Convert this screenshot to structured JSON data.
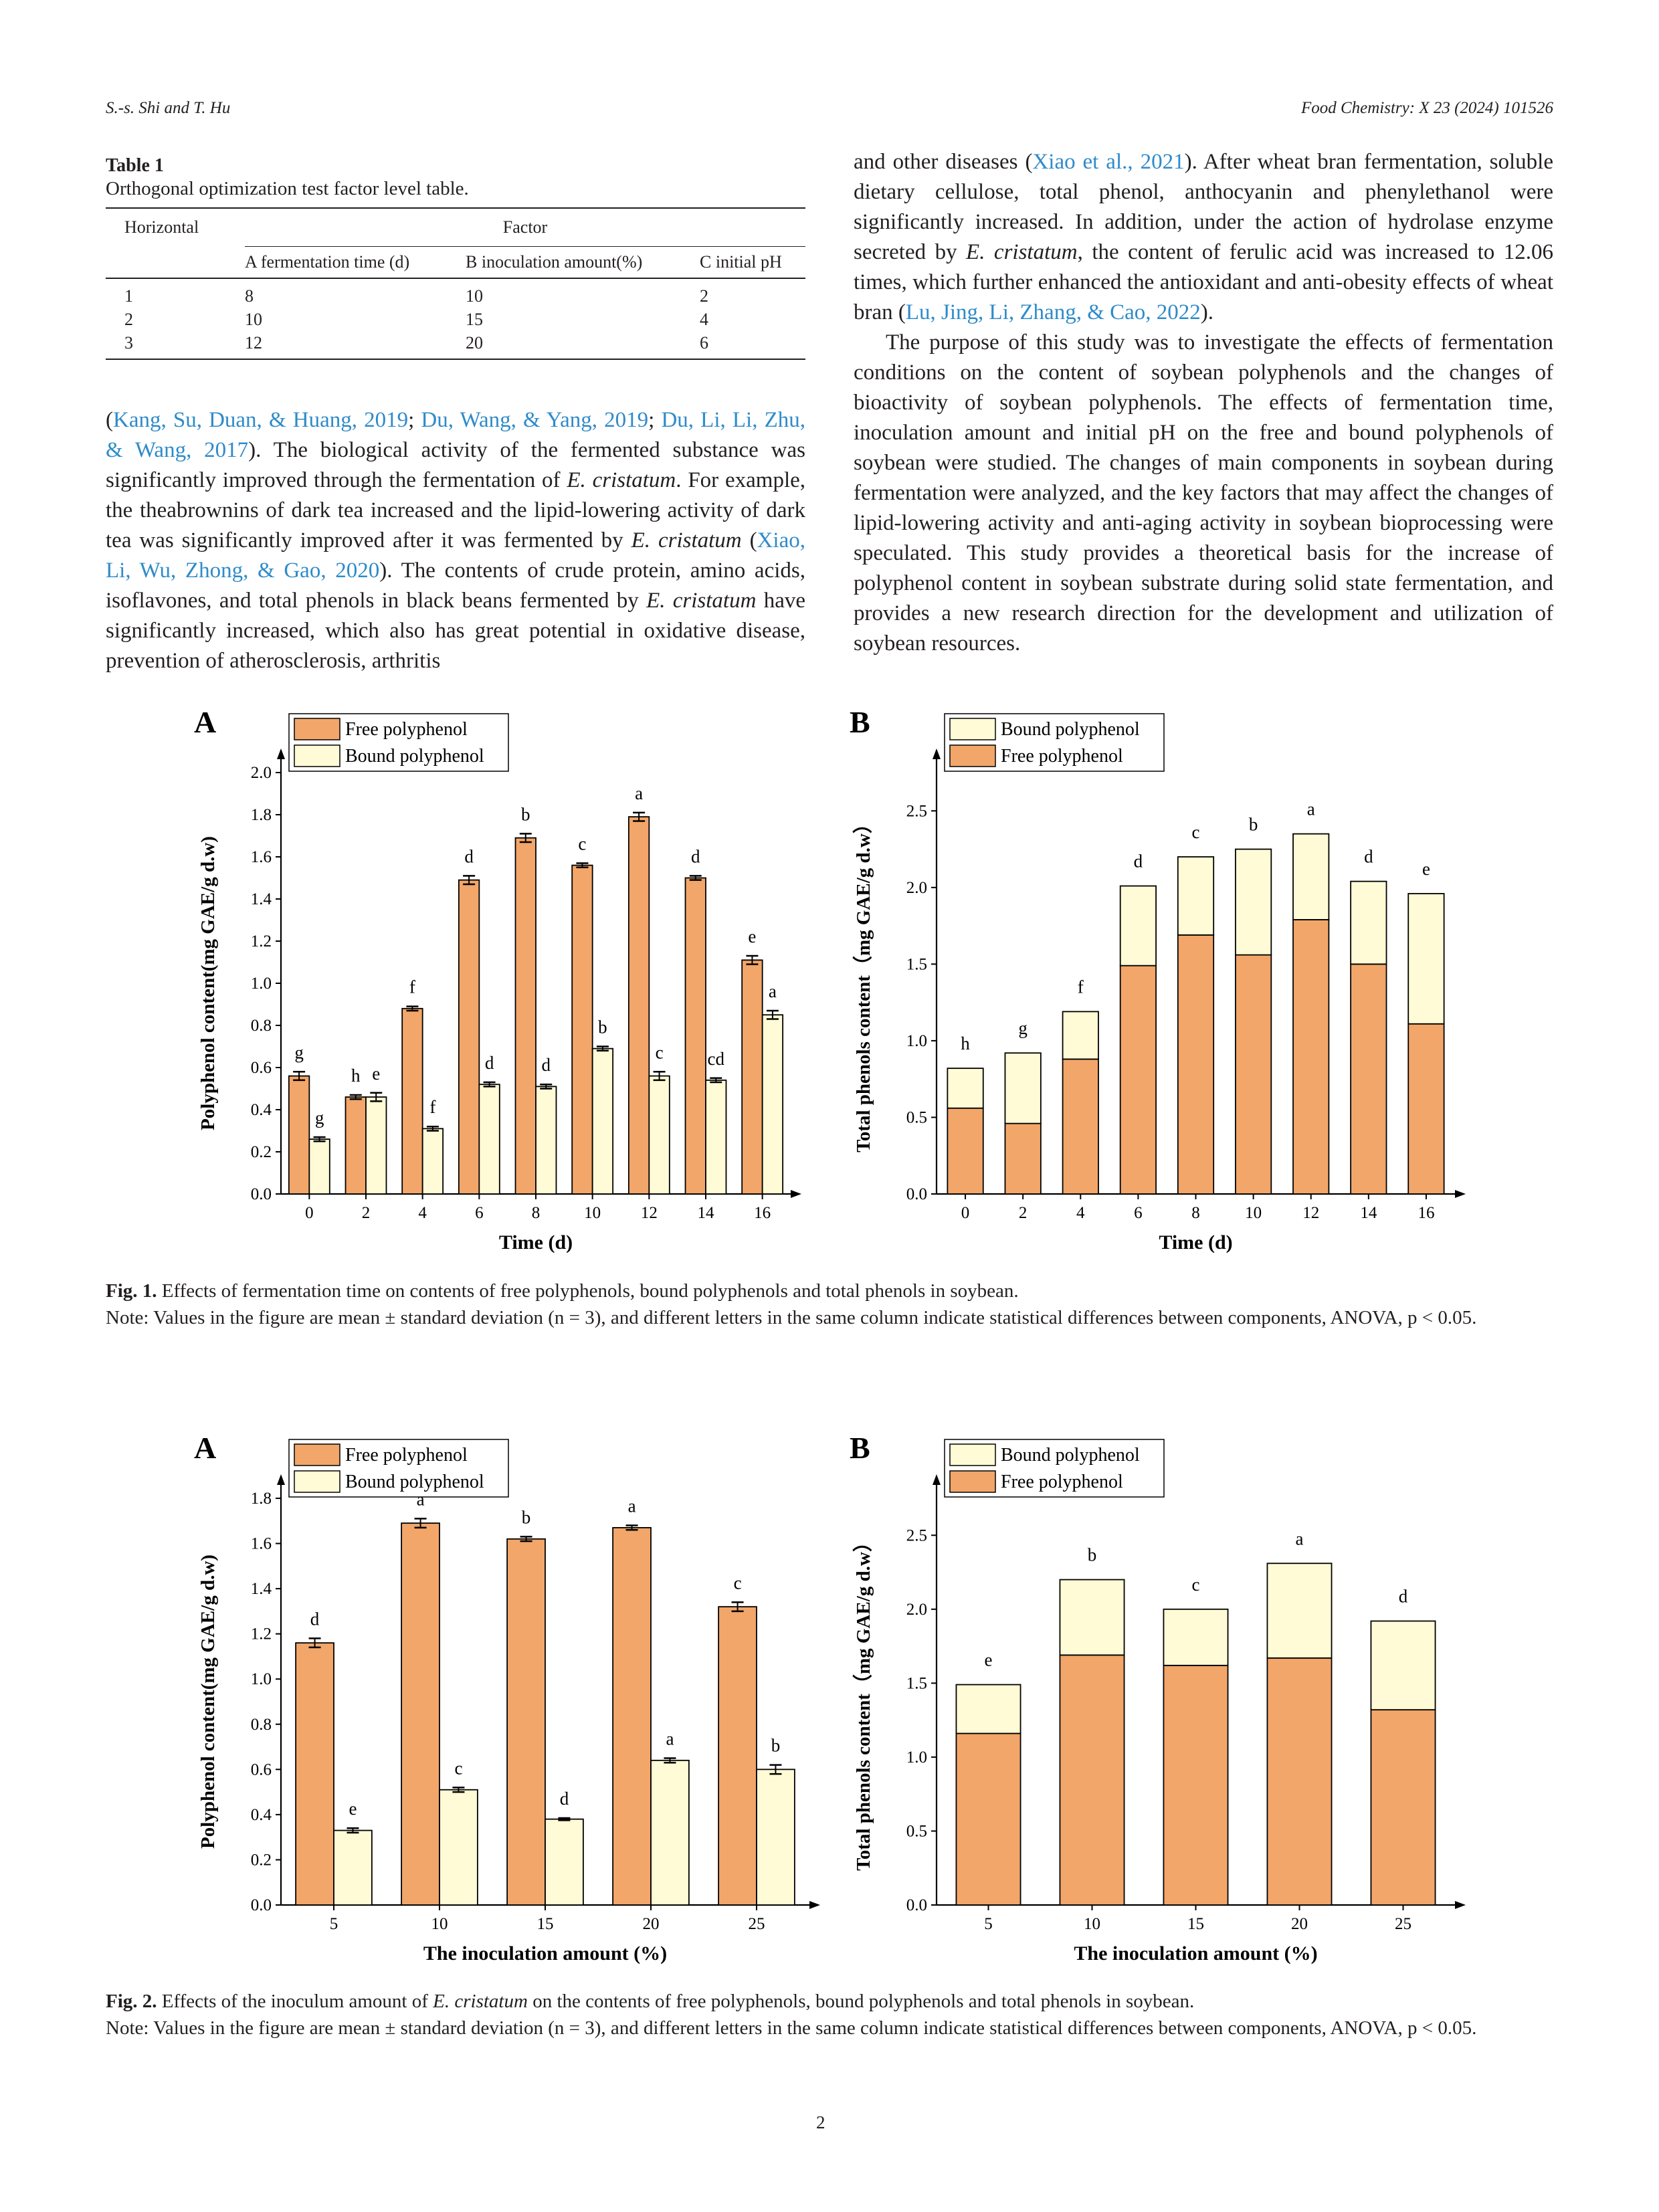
{
  "header": {
    "left": "S.-s. Shi and T. Hu",
    "right": "Food Chemistry: X 23 (2024) 101526"
  },
  "table1": {
    "title": "Table 1",
    "subtitle": "Orthogonal optimization test factor level table.",
    "col_horizontal": "Horizontal",
    "col_factor": "Factor",
    "factors": [
      "A fermentation time (d)",
      "B inoculation amount(%)",
      "C initial pH"
    ],
    "rows": [
      [
        "1",
        "8",
        "10",
        "2"
      ],
      [
        "2",
        "10",
        "15",
        "4"
      ],
      [
        "3",
        "12",
        "20",
        "6"
      ]
    ]
  },
  "left_text": {
    "refs": [
      "Kang, Su, Duan, & Huang, 2019",
      "; ",
      "Du, Wang, & Yang, 2019",
      "; ",
      "Du, Li, Li, Zhu, & Wang, 2017"
    ],
    "s1": "). The biological activity of the fermented substance was significantly improved through the fermentation of ",
    "sp1": "E. cristatum",
    "s2": ". For example, the theabrownins of dark tea increased and the lipid-lowering activity of dark tea was significantly improved after it was fermented by ",
    "sp2": "E. cristatum",
    "s3": " (",
    "ref4": "Xiao, Li, Wu, Zhong, & Gao, 2020",
    "s4": "). The contents of crude protein, amino acids, isoflavones, and total phenols in black beans fermented by ",
    "sp3": "E. cristatum",
    "s5": " have significantly increased, which also has great potential in oxidative disease, prevention of atherosclerosis, arthritis"
  },
  "right_text": {
    "p1a": "and other diseases (",
    "ref1": "Xiao et al., 2021",
    "p1b": "). After wheat bran fermentation, soluble dietary cellulose, total phenol, anthocyanin and phenylethanol were significantly increased. In addition, under the action of hydrolase enzyme secreted by ",
    "sp1": "E. cristatum",
    "p1c": ", the content of ferulic acid was increased to 12.06 times, which further enhanced the antioxidant and anti-obesity effects of wheat bran (",
    "ref2": "Lu, Jing, Li, Zhang, & Cao, 2022",
    "p1d": ").",
    "p2": "The purpose of this study was to investigate the effects of fermentation conditions on the content of soybean polyphenols and the changes of bioactivity of soybean polyphenols. The effects of fermentation time, inoculation amount and initial pH on the free and bound polyphenols of soybean were studied. The changes of main components in soybean during fermentation were analyzed, and the key factors that may affect the changes of lipid-lowering activity and anti-aging activity in soybean bioprocessing were speculated. This study provides a theoretical basis for the increase of polyphenol content in soybean substrate during solid state fermentation, and provides a new research direction for the development and utilization of soybean resources."
  },
  "colors": {
    "free": "#f2a66a",
    "bound": "#fffbd6",
    "link": "#2f8bc9"
  },
  "fig1": {
    "caption_label": "Fig. 1.",
    "caption": " Effects of fermentation time on contents of free polyphenols, bound polyphenols and total phenols in soybean.",
    "note": "Note: Values in the figure are mean ± standard deviation (n = 3), and different letters in the same column indicate statistical differences between components, ANOVA, p < 0.05."
  },
  "fig2": {
    "caption_label": "Fig. 2.",
    "caption_a": " Effects of the inoculum amount of ",
    "caption_sp": "E. cristatum",
    "caption_b": " on the contents of free polyphenols, bound polyphenols and total phenols in soybean.",
    "note": "Note: Values in the figure are mean ± standard deviation (n = 3), and different letters in the same column indicate statistical differences between components, ANOVA, p < 0.05."
  },
  "page_number": "2",
  "chart_data": [
    {
      "id": "fig1A",
      "type": "bar",
      "panel": "A",
      "xlabel": "Time (d)",
      "ylabel": "Polyphenol content(mg GAE/g d.w)",
      "categories": [
        "0",
        "2",
        "4",
        "6",
        "8",
        "10",
        "12",
        "14",
        "16"
      ],
      "ylim": [
        0,
        2.0
      ],
      "yticks": [
        "0.0",
        "0.2",
        "0.4",
        "0.6",
        "0.8",
        "1.0",
        "1.2",
        "1.4",
        "1.6",
        "1.8",
        "2.0"
      ],
      "legend": "top-left",
      "series": [
        {
          "name": "Free polyphenol",
          "values": [
            0.56,
            0.46,
            0.88,
            1.49,
            1.69,
            1.56,
            1.79,
            1.5,
            1.11
          ],
          "errors": [
            0.02,
            0.01,
            0.01,
            0.02,
            0.02,
            0.01,
            0.02,
            0.01,
            0.02
          ],
          "letters": [
            "g",
            "h",
            "f",
            "d",
            "b",
            "c",
            "a",
            "d",
            "e"
          ]
        },
        {
          "name": "Bound polyphenol",
          "values": [
            0.26,
            0.46,
            0.31,
            0.52,
            0.51,
            0.69,
            0.56,
            0.54,
            0.85
          ],
          "errors": [
            0.01,
            0.02,
            0.01,
            0.01,
            0.01,
            0.01,
            0.02,
            0.01,
            0.02
          ],
          "letters": [
            "g",
            "e",
            "f",
            "d",
            "d",
            "b",
            "c",
            "cd",
            "a"
          ]
        }
      ]
    },
    {
      "id": "fig1B",
      "type": "bar",
      "panel": "B",
      "stacked": true,
      "xlabel": "Time (d)",
      "ylabel": "Total phenols content（mg GAE/g d.w）",
      "categories": [
        "0",
        "2",
        "4",
        "6",
        "8",
        "10",
        "12",
        "14",
        "16"
      ],
      "ylim": [
        0,
        2.75
      ],
      "yticks": [
        "0.0",
        "0.5",
        "1.0",
        "1.5",
        "2.0",
        "2.5"
      ],
      "legend": "top-left",
      "series": [
        {
          "name": "Free polyphenol",
          "values": [
            0.56,
            0.46,
            0.88,
            1.49,
            1.69,
            1.56,
            1.79,
            1.5,
            1.11
          ]
        },
        {
          "name": "Bound polyphenol",
          "values": [
            0.26,
            0.46,
            0.31,
            0.52,
            0.51,
            0.69,
            0.56,
            0.54,
            0.85
          ]
        }
      ],
      "letters": [
        "h",
        "g",
        "f",
        "d",
        "c",
        "b",
        "a",
        "d",
        "e"
      ]
    },
    {
      "id": "fig2A",
      "type": "bar",
      "panel": "A",
      "xlabel": "The inoculation amount (%)",
      "ylabel": "Polyphenol content(mg GAE/g d.w)",
      "categories": [
        "5",
        "10",
        "15",
        "20",
        "25"
      ],
      "ylim": [
        0,
        1.8
      ],
      "yticks": [
        "0.0",
        "0.2",
        "0.4",
        "0.6",
        "0.8",
        "1.0",
        "1.2",
        "1.4",
        "1.6",
        "1.8"
      ],
      "legend": "top-left",
      "series": [
        {
          "name": "Free polyphenol",
          "values": [
            1.16,
            1.69,
            1.62,
            1.67,
            1.32
          ],
          "errors": [
            0.02,
            0.02,
            0.01,
            0.01,
            0.02
          ],
          "letters": [
            "d",
            "a",
            "b",
            "a",
            "c"
          ]
        },
        {
          "name": "Bound polyphenol",
          "values": [
            0.33,
            0.51,
            0.38,
            0.64,
            0.6
          ],
          "errors": [
            0.01,
            0.01,
            0.005,
            0.01,
            0.02
          ],
          "letters": [
            "e",
            "c",
            "d",
            "a",
            "b"
          ]
        }
      ]
    },
    {
      "id": "fig2B",
      "type": "bar",
      "panel": "B",
      "stacked": true,
      "xlabel": "The inoculation amount (%)",
      "ylabel": "Total phenols content（mg GAE/g d.w）",
      "categories": [
        "5",
        "10",
        "15",
        "20",
        "25"
      ],
      "ylim": [
        0,
        2.75
      ],
      "yticks": [
        "0.0",
        "0.5",
        "1.0",
        "1.5",
        "2.0",
        "2.5"
      ],
      "legend": "top-left",
      "series": [
        {
          "name": "Free polyphenol",
          "values": [
            1.16,
            1.69,
            1.62,
            1.67,
            1.32
          ]
        },
        {
          "name": "Bound polyphenol",
          "values": [
            0.33,
            0.51,
            0.38,
            0.64,
            0.6
          ]
        }
      ],
      "letters": [
        "e",
        "b",
        "c",
        "a",
        "d"
      ]
    }
  ]
}
